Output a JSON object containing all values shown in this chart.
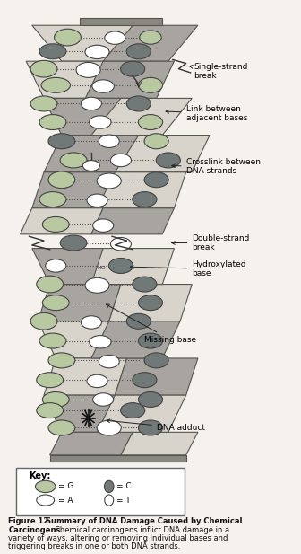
{
  "figure_title": "Figure 12",
  "figure_bold": "Summary of DNA Damage Caused by Chemical Carcinogens.",
  "figure_caption": " Chemical carcinogens inflict DNA damage in a variety of ways, altering or removing individual bases and triggering breaks in one or both DNA strands.",
  "bg_color": "#f5f2ed",
  "light_ribbon": "#d8d4cc",
  "dark_ribbon": "#a8a4a0",
  "cap_color": "#888880",
  "edge_color": "#555550",
  "base_G_color": "#b8c8a0",
  "base_C_color": "#707878",
  "base_A_color": "#ffffff",
  "base_T_color": "#ffffff",
  "label_fontsize": 6.5,
  "key_fontsize": 6.5,
  "caption_fontsize": 6.0
}
